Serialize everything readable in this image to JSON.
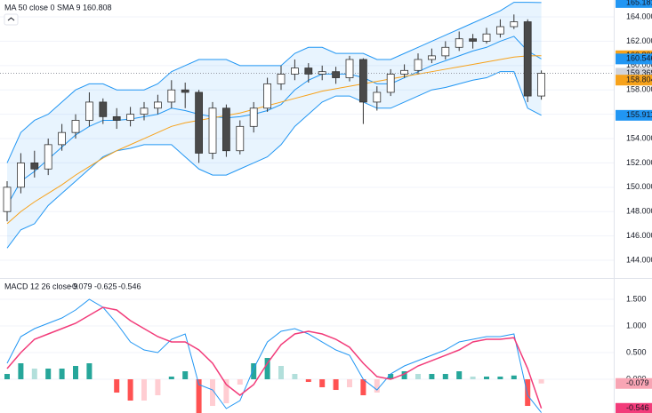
{
  "chart_data": [
    {
      "type": "candlestick",
      "legend_label": "MA 50 close 0 SMA 9",
      "legend_value": 160.808,
      "legend_color": "#f7a21b",
      "ylim": [
        142.54,
        165.39
      ],
      "yticks": [
        {
          "value": 144,
          "label": "144.000"
        },
        {
          "value": 146,
          "label": "146.000"
        },
        {
          "value": 148,
          "label": "148.000"
        },
        {
          "value": 150,
          "label": "150.000"
        },
        {
          "value": 152,
          "label": "152.000"
        },
        {
          "value": 154,
          "label": "154.000"
        },
        {
          "value": 156,
          "label": "156.000"
        },
        {
          "value": 158,
          "label": "158.000"
        },
        {
          "value": 160,
          "label": "160.000"
        },
        {
          "value": 162,
          "label": "162.000"
        },
        {
          "value": 164,
          "label": "164.000"
        }
      ],
      "up_color": "#ffffff",
      "down_color": "#4a4a4a",
      "wick_color": "#333333",
      "open": [
        148,
        150,
        152,
        151.5,
        153.5,
        154.5,
        155.5,
        157,
        155.8,
        155.5,
        156,
        156.5,
        157,
        158,
        157.8,
        152.8,
        156.5,
        153,
        155,
        156.5,
        158.5,
        159.3,
        159.8,
        159.3,
        159.5,
        159,
        160.5,
        157,
        157.8,
        159.3,
        159.6,
        160.5,
        160.8,
        161.5,
        162.2,
        162,
        162.6,
        163.2,
        163.6,
        157.5
      ],
      "high": [
        150.5,
        152.8,
        153,
        154,
        155.2,
        156,
        157.8,
        157.3,
        156.5,
        156.6,
        157,
        157.6,
        158.8,
        158.6,
        158,
        157,
        156.8,
        155.5,
        157,
        159,
        160,
        160.5,
        160.2,
        160,
        159.9,
        160.8,
        160.6,
        158.3,
        159.7,
        160.1,
        161,
        161.4,
        162,
        162.8,
        162.6,
        163.1,
        163.8,
        164.2,
        163.8,
        159.6
      ],
      "low": [
        147.2,
        149.5,
        150.8,
        151,
        153,
        154,
        155,
        155.2,
        154.8,
        155,
        155.5,
        156,
        156.5,
        156.5,
        152,
        152.3,
        152.5,
        152.7,
        154.5,
        156.2,
        158,
        158.8,
        158.6,
        158.8,
        158.5,
        158.7,
        155.2,
        156.3,
        157.5,
        159,
        159.3,
        160.2,
        160.5,
        161.2,
        161.4,
        161.8,
        162.3,
        163,
        157,
        157.2
      ],
      "close": [
        150,
        152,
        151.5,
        153.5,
        154.5,
        155.5,
        157,
        155.8,
        155.5,
        156,
        156.5,
        157,
        158,
        157.8,
        152.8,
        156.5,
        153,
        155,
        156.5,
        158.5,
        159.3,
        159.8,
        159.3,
        159.5,
        159,
        160.5,
        157,
        157.8,
        159.3,
        159.6,
        160.5,
        160.8,
        161.5,
        162.2,
        162,
        162.6,
        163.2,
        163.6,
        157.5,
        159.369
      ],
      "bands": {
        "color": "#2196f3",
        "upper": [
          152,
          154.5,
          155.5,
          156,
          157,
          158,
          158.5,
          158.5,
          158,
          158,
          158,
          158.5,
          159.5,
          160,
          160.5,
          160.5,
          160.5,
          160,
          160,
          160,
          160,
          161,
          161.5,
          161.5,
          161,
          161,
          161,
          160.5,
          160.5,
          161,
          161.5,
          162,
          162.5,
          163,
          163.5,
          164,
          164.5,
          165.2,
          165.2,
          165.181
        ],
        "basis": [
          148.5,
          150.5,
          151.3,
          152.3,
          153.3,
          154.3,
          155,
          155.5,
          155.5,
          155.6,
          155.8,
          156,
          156.5,
          156.3,
          156,
          155.8,
          155.7,
          155.8,
          156,
          156.3,
          156.8,
          158,
          158.8,
          159.3,
          159.3,
          159.3,
          159,
          158.5,
          158.5,
          159,
          159.5,
          160,
          160.4,
          160.8,
          161.2,
          161.5,
          162,
          162.4,
          161.2,
          160.546
        ],
        "lower": [
          145,
          146.5,
          147,
          148.5,
          149.5,
          150.5,
          151.5,
          152.5,
          153,
          153.2,
          153.5,
          153.5,
          153.5,
          152.5,
          151.5,
          151,
          151,
          151.5,
          152,
          152.5,
          153.5,
          155,
          156,
          157,
          157.5,
          157.5,
          157,
          156.5,
          156.5,
          157,
          157.5,
          158,
          158.2,
          158.5,
          158.8,
          159,
          159.5,
          159.5,
          156.5,
          155.911
        ]
      },
      "ma": {
        "color": "#f7a21b",
        "values": [
          147,
          148,
          148.8,
          149.5,
          150.2,
          151,
          151.7,
          152.4,
          153,
          153.5,
          154,
          154.5,
          155,
          155.3,
          155.5,
          155.7,
          155.9,
          156.1,
          156.4,
          156.7,
          157,
          157.3,
          157.6,
          157.9,
          158.1,
          158.3,
          158.5,
          158.7,
          158.9,
          159.1,
          159.3,
          159.5,
          159.7,
          159.9,
          160.1,
          160.3,
          160.5,
          160.7,
          160.8,
          160.808
        ]
      },
      "price_labels": [
        {
          "value": 165.181,
          "color": "#2196f3"
        },
        {
          "value": 160.808,
          "color": "#f7a21b"
        },
        {
          "value": 160.546,
          "color": "#2196f3"
        },
        {
          "value": 159.369,
          "color": "#d1d4dc"
        },
        {
          "value": 158.804,
          "color": "#f7a21b"
        },
        {
          "value": 155.911,
          "color": "#2196f3"
        }
      ]
    },
    {
      "type": "macd",
      "legend_label": "MACD 12 26 close 9",
      "legend_values": [
        {
          "value": -0.079,
          "color": "#f8a5b4"
        },
        {
          "value": -0.625,
          "color": "#2196f3"
        },
        {
          "value": -0.546,
          "color": "#f23c7a"
        }
      ],
      "ylim": [
        -0.633,
        1.9
      ],
      "yticks": [
        {
          "value": 0,
          "label": "0.000"
        },
        {
          "value": 0.5,
          "label": "0.500"
        },
        {
          "value": 1,
          "label": "1.000"
        },
        {
          "value": 1.5,
          "label": "1.500"
        }
      ],
      "hist_colors": [
        "#26a69a",
        "#b2dfdb",
        "#ffcdd2",
        "#ff5252"
      ],
      "macd": {
        "color": "#2196f3",
        "values": [
          0.3,
          0.8,
          0.95,
          1.05,
          1.15,
          1.3,
          1.5,
          1.35,
          1.05,
          0.7,
          0.55,
          0.5,
          0.75,
          0.85,
          -0.1,
          -0.2,
          -0.55,
          -0.4,
          0.2,
          0.7,
          0.9,
          0.95,
          0.85,
          0.7,
          0.55,
          0.45,
          0,
          -0.2,
          0.1,
          0.25,
          0.35,
          0.45,
          0.55,
          0.7,
          0.75,
          0.8,
          0.8,
          0.85,
          -0.3,
          -0.625
        ]
      },
      "signal": {
        "color": "#f23c7a",
        "values": [
          0.2,
          0.5,
          0.75,
          0.85,
          0.95,
          1.05,
          1.2,
          1.35,
          1.3,
          1.1,
          0.95,
          0.8,
          0.7,
          0.7,
          0.55,
          0.3,
          -0.1,
          -0.3,
          -0.1,
          0.3,
          0.65,
          0.85,
          0.9,
          0.85,
          0.75,
          0.6,
          0.3,
          0.05,
          0,
          0.1,
          0.25,
          0.35,
          0.45,
          0.55,
          0.7,
          0.75,
          0.75,
          0.78,
          0.2,
          -0.546
        ]
      },
      "histogram": [
        0.1,
        0.3,
        0.2,
        0.2,
        0.2,
        0.25,
        0.3,
        0,
        -0.25,
        -0.4,
        -0.4,
        -0.3,
        0.05,
        0.15,
        -0.65,
        -0.5,
        -0.45,
        -0.1,
        0.3,
        0.4,
        0.25,
        0.1,
        -0.05,
        -0.15,
        -0.2,
        -0.15,
        -0.3,
        -0.25,
        0.1,
        0.15,
        0.1,
        0.1,
        0.1,
        0.15,
        0.05,
        0.05,
        0.05,
        0.07,
        -0.5,
        -0.079
      ],
      "right_labels": [
        {
          "path": "histogram.39",
          "color": "#f8a5b4"
        },
        {
          "path": "signal.values.39",
          "color": "#f23c7a"
        }
      ]
    }
  ]
}
